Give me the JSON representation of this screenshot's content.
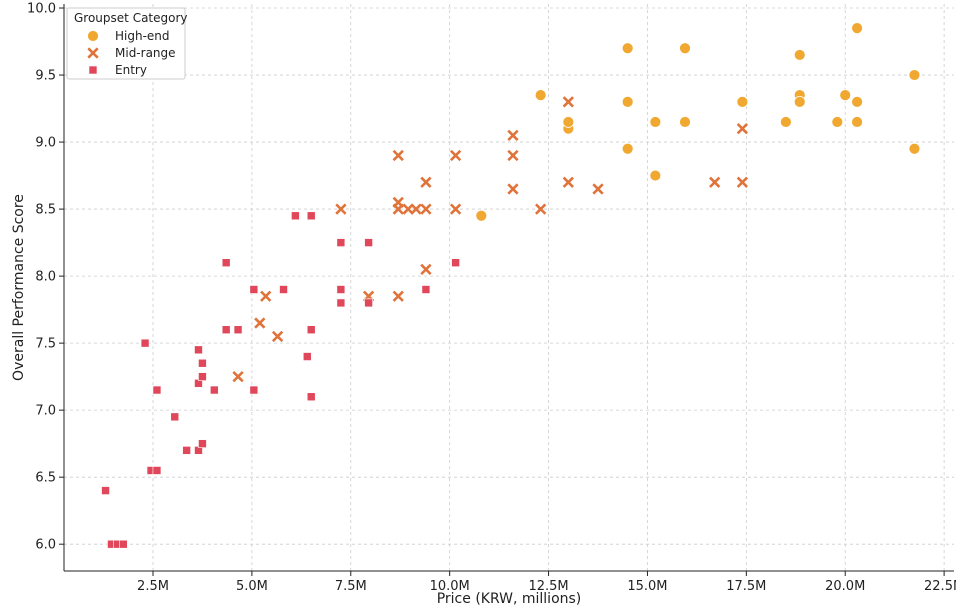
{
  "chart_data": {
    "type": "scatter",
    "title": "",
    "xlabel": "Price (KRW, millions)",
    "ylabel": "Overall Performance Score",
    "xlim": [
      0.25,
      22.75
    ],
    "ylim": [
      5.8,
      10.03
    ],
    "x_ticks": [
      2.5,
      5.0,
      7.5,
      10.0,
      12.5,
      15.0,
      17.5,
      20.0,
      22.5
    ],
    "x_tick_labels": [
      "2.5M",
      "5.0M",
      "7.5M",
      "10.0M",
      "12.5M",
      "15.0M",
      "17.5M",
      "20.0M",
      "22.5M"
    ],
    "y_ticks": [
      6.0,
      6.5,
      7.0,
      7.5,
      8.0,
      8.5,
      9.0,
      9.5,
      10.0
    ],
    "y_tick_labels": [
      "6.0",
      "6.5",
      "7.0",
      "7.5",
      "8.0",
      "8.5",
      "9.0",
      "9.5",
      "10.0"
    ],
    "grid": true,
    "legend": {
      "title": "Groupset Category",
      "placement": "top-left"
    },
    "series": [
      {
        "name": "High-end",
        "marker": "circle",
        "color": "#F0A830",
        "points": [
          [
            10.8,
            8.45
          ],
          [
            12.3,
            9.35
          ],
          [
            13.0,
            9.1
          ],
          [
            13.0,
            9.15
          ],
          [
            14.5,
            9.7
          ],
          [
            14.5,
            9.3
          ],
          [
            14.5,
            8.95
          ],
          [
            15.2,
            9.15
          ],
          [
            15.2,
            8.75
          ],
          [
            15.95,
            9.7
          ],
          [
            15.95,
            9.15
          ],
          [
            17.4,
            9.3
          ],
          [
            18.5,
            9.15
          ],
          [
            18.85,
            9.65
          ],
          [
            18.85,
            9.35
          ],
          [
            18.85,
            9.3
          ],
          [
            19.8,
            9.15
          ],
          [
            20.0,
            9.35
          ],
          [
            20.3,
            9.85
          ],
          [
            20.3,
            9.3
          ],
          [
            20.3,
            9.15
          ],
          [
            21.75,
            9.5
          ],
          [
            21.75,
            8.95
          ]
        ]
      },
      {
        "name": "Mid-range",
        "marker": "x",
        "color": "#E0733A",
        "points": [
          [
            4.65,
            7.25
          ],
          [
            5.2,
            7.65
          ],
          [
            5.35,
            7.85
          ],
          [
            5.65,
            7.55
          ],
          [
            7.25,
            8.5
          ],
          [
            7.95,
            7.85
          ],
          [
            8.7,
            8.9
          ],
          [
            8.7,
            8.55
          ],
          [
            8.7,
            8.5
          ],
          [
            8.7,
            7.85
          ],
          [
            8.95,
            8.5
          ],
          [
            9.15,
            8.5
          ],
          [
            9.4,
            8.7
          ],
          [
            9.4,
            8.5
          ],
          [
            9.4,
            8.05
          ],
          [
            10.15,
            8.9
          ],
          [
            10.15,
            8.5
          ],
          [
            11.6,
            9.05
          ],
          [
            11.6,
            8.9
          ],
          [
            11.6,
            8.65
          ],
          [
            12.3,
            8.5
          ],
          [
            13.0,
            9.3
          ],
          [
            13.0,
            8.7
          ],
          [
            13.75,
            8.65
          ],
          [
            16.7,
            8.7
          ],
          [
            17.4,
            9.1
          ],
          [
            17.4,
            8.7
          ]
        ]
      },
      {
        "name": "Entry",
        "marker": "square",
        "color": "#E0475A",
        "points": [
          [
            1.3,
            6.4
          ],
          [
            1.45,
            6.0
          ],
          [
            1.6,
            6.0
          ],
          [
            1.75,
            6.0
          ],
          [
            2.3,
            7.5
          ],
          [
            2.45,
            6.55
          ],
          [
            2.6,
            6.55
          ],
          [
            2.6,
            7.15
          ],
          [
            3.05,
            6.95
          ],
          [
            3.35,
            6.7
          ],
          [
            3.65,
            7.45
          ],
          [
            3.65,
            7.2
          ],
          [
            3.65,
            6.7
          ],
          [
            3.75,
            7.35
          ],
          [
            3.75,
            7.25
          ],
          [
            3.75,
            6.75
          ],
          [
            4.05,
            7.15
          ],
          [
            4.35,
            8.1
          ],
          [
            4.35,
            7.6
          ],
          [
            4.65,
            7.6
          ],
          [
            5.05,
            7.9
          ],
          [
            5.05,
            7.15
          ],
          [
            5.8,
            7.9
          ],
          [
            6.1,
            8.45
          ],
          [
            6.4,
            7.4
          ],
          [
            6.5,
            8.45
          ],
          [
            6.5,
            7.6
          ],
          [
            6.5,
            7.1
          ],
          [
            7.25,
            8.25
          ],
          [
            7.25,
            7.9
          ],
          [
            7.25,
            7.8
          ],
          [
            7.95,
            8.25
          ],
          [
            7.95,
            7.8
          ],
          [
            9.4,
            7.9
          ],
          [
            10.15,
            8.1
          ]
        ]
      }
    ]
  }
}
